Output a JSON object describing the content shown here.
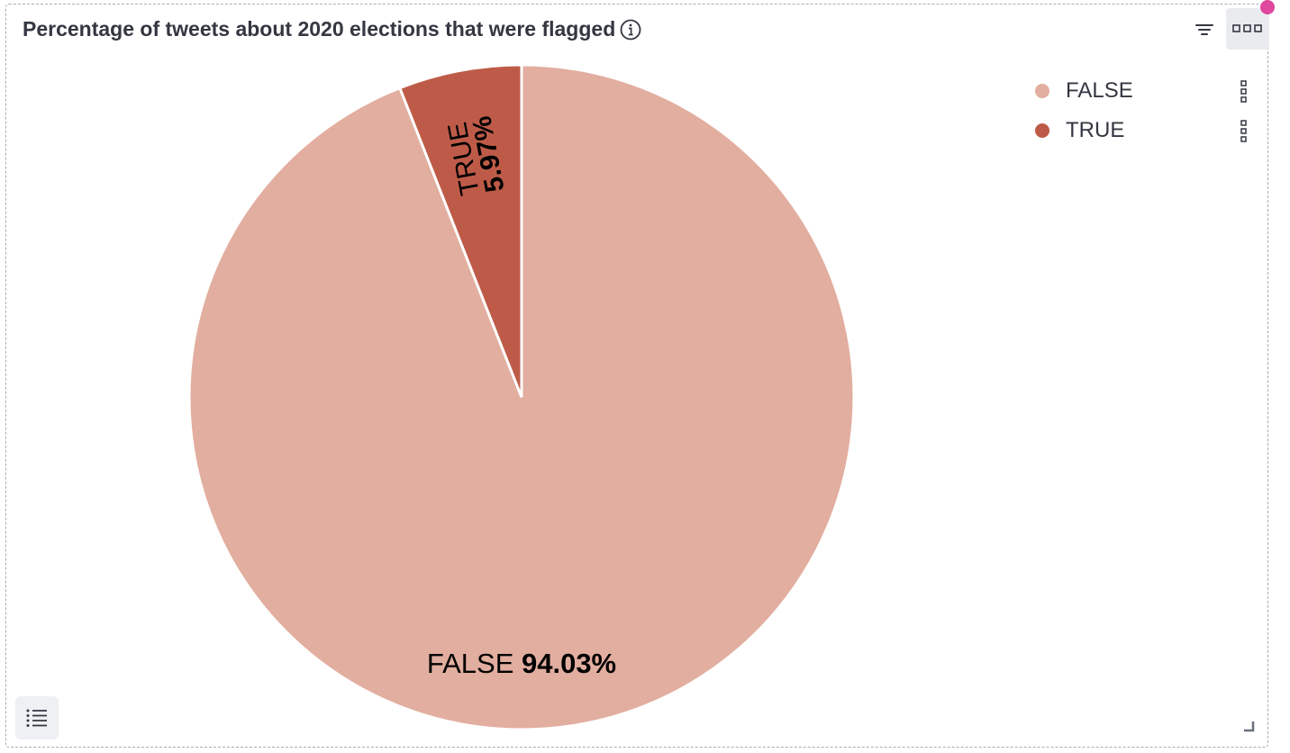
{
  "panel": {
    "title": "Percentage of tweets about 2020 elections that were flagged"
  },
  "chart_data": {
    "type": "pie",
    "title": "Percentage of tweets about 2020 elections that were flagged",
    "categories": [
      "FALSE",
      "TRUE"
    ],
    "values": [
      94.03,
      5.97
    ],
    "value_labels": [
      "94.03%",
      "5.97%"
    ],
    "colors": [
      "#e2ae9f",
      "#be5b48"
    ],
    "legend": "top-right"
  },
  "legend": {
    "items": [
      {
        "label": "FALSE",
        "color": "#e2ae9f"
      },
      {
        "label": "TRUE",
        "color": "#be5b48"
      }
    ]
  }
}
